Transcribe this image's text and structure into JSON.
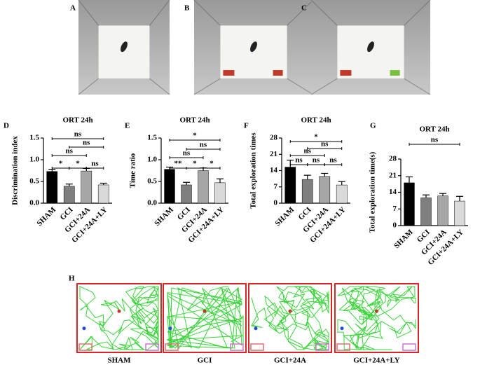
{
  "panels": [
    "A",
    "B",
    "C",
    "D",
    "E",
    "F",
    "G",
    "H"
  ],
  "tracks": [
    "SHAM",
    "GCI",
    "GCI+24A",
    "GCI+24A+LY"
  ],
  "chart_data": [
    {
      "type": "bar",
      "title": "ORT 24h",
      "y_label": "Discrimination index",
      "categories": [
        "SHAM",
        "GCI",
        "GCI+24A",
        "GCI+24A+LY"
      ],
      "series": [
        {
          "values": [
            0.73,
            0.39,
            0.74,
            0.42
          ],
          "errors": [
            0.05,
            0.05,
            0.06,
            0.04
          ],
          "colors": [
            "#000000",
            "#7f7f7f",
            "#a6a6a6",
            "#d9d9d9"
          ]
        }
      ],
      "ylim": [
        0,
        1.5
      ],
      "yticks": [
        {
          "value": 0,
          "label": "0.0"
        },
        0.5,
        {
          "value": 1,
          "label": "1.0"
        },
        1.5
      ],
      "annotations": [
        "ns",
        "ns",
        "ns",
        "*",
        "*",
        "ns"
      ]
    },
    {
      "type": "bar",
      "title": "ORT 24h",
      "y_label": "Time ratio",
      "categories": [
        "SHAM",
        "GCI",
        "GCI+24A",
        "GCI+24A+LY"
      ],
      "series": [
        {
          "values": [
            0.78,
            0.42,
            0.75,
            0.47
          ],
          "errors": [
            0.05,
            0.06,
            0.06,
            0.09
          ],
          "colors": [
            "#000000",
            "#7f7f7f",
            "#a6a6a6",
            "#d9d9d9"
          ]
        }
      ],
      "ylim": [
        0,
        1.5
      ],
      "yticks": [
        {
          "value": 0,
          "label": "0.0"
        },
        0.5,
        {
          "value": 1,
          "label": "1.0"
        },
        1.5
      ],
      "annotations": [
        "*",
        "ns",
        "ns",
        "**",
        "*",
        "*"
      ]
    },
    {
      "type": "bar",
      "title": "ORT 24h",
      "y_label": "Total exploration times",
      "categories": [
        "SHAM",
        "GCI",
        "GCI+24A",
        "GCI+24A+LY"
      ],
      "series": [
        {
          "values": [
            15.5,
            10.2,
            11.5,
            7.8
          ],
          "errors": [
            3,
            1.8,
            1.3,
            1.5
          ],
          "colors": [
            "#000000",
            "#7f7f7f",
            "#a6a6a6",
            "#d9d9d9"
          ]
        }
      ],
      "ylim": [
        0,
        28
      ],
      "yticks": [
        0,
        7,
        14,
        21,
        28
      ],
      "annotations": [
        "*",
        "ns",
        "ns",
        "ns",
        "ns",
        "ns"
      ]
    },
    {
      "type": "bar",
      "title": "ORT 24h",
      "y_label": "Total exploration time(s)",
      "categories": [
        "SHAM",
        "GCI",
        "GCI+24A",
        "GCI+24A+LY"
      ],
      "series": [
        {
          "values": [
            18,
            11.7,
            12.5,
            10.3
          ],
          "errors": [
            2.5,
            1.2,
            1.0,
            2.0
          ],
          "colors": [
            "#000000",
            "#7f7f7f",
            "#a6a6a6",
            "#d9d9d9"
          ]
        }
      ],
      "ylim": [
        0,
        28
      ],
      "yticks": [
        0,
        7,
        14,
        21,
        28
      ],
      "annotations": [
        "ns"
      ]
    }
  ]
}
